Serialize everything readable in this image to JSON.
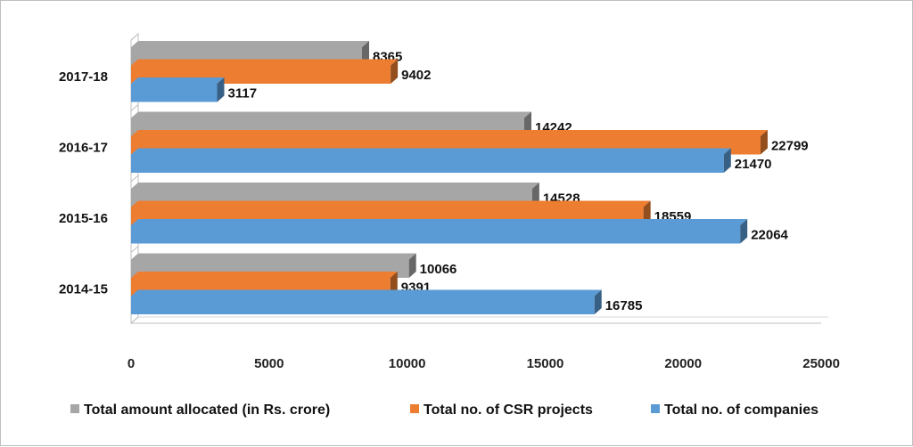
{
  "chart_data": {
    "type": "bar",
    "orientation": "horizontal",
    "style": "3d",
    "categories": [
      "2014-15",
      "2015-16",
      "2016-17",
      "2017-18"
    ],
    "series": [
      {
        "name": "Total amount allocated (in Rs. crore)",
        "color": "#a6a6a6",
        "values": [
          10066,
          14528,
          14242,
          8365
        ]
      },
      {
        "name": "Total no. of CSR projects",
        "color": "#ed7d31",
        "values": [
          9391,
          18559,
          22799,
          9402
        ]
      },
      {
        "name": "Total no. of companies",
        "color": "#5b9bd5",
        "values": [
          16785,
          22064,
          21470,
          3117
        ]
      }
    ],
    "xlim": [
      0,
      25000
    ],
    "xticks": [
      0,
      5000,
      10000,
      15000,
      20000,
      25000
    ],
    "title": "",
    "xlabel": "",
    "ylabel": "",
    "grid": false,
    "legend": "bottom"
  }
}
